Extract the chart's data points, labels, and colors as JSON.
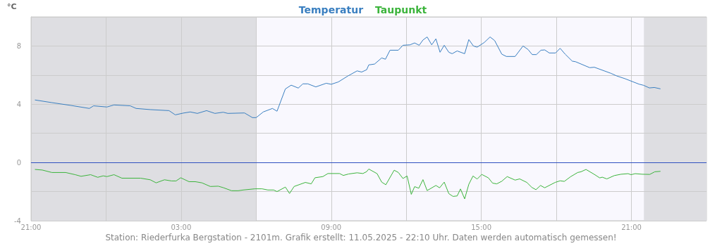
{
  "chart_data": {
    "type": "line",
    "ylabel": "°C",
    "annotations": [
      "Station: Riederfurka Bergstation - 2101m. Grafik erstellt: 11.05.2025 - 22:10 Uhr. Daten werden automatisch gemessen!"
    ],
    "series": [
      {
        "name": "Temperatur",
        "color": "#3a7fc0",
        "x": [
          "2025-05-10T21:10",
          "2025-05-10T21:50",
          "2025-05-10T22:35",
          "2025-05-10T23:20",
          "2025-05-10T23:30",
          "2025-05-11T00:02",
          "2025-05-11T00:19",
          "2025-05-11T00:58",
          "2025-05-11T01:12",
          "2025-05-11T01:46",
          "2025-05-11T02:31",
          "2025-05-11T02:46",
          "2025-05-11T03:05",
          "2025-05-11T03:22",
          "2025-05-11T03:39",
          "2025-05-11T04:01",
          "2025-05-11T04:21",
          "2025-05-11T04:41",
          "2025-05-11T04:52",
          "2025-05-11T05:32",
          "2025-05-11T05:51",
          "2025-05-11T06:00",
          "2025-05-11T06:17",
          "2025-05-11T06:39",
          "2025-05-11T06:50",
          "2025-05-11T07:10",
          "2025-05-11T07:24",
          "2025-05-11T07:41",
          "2025-05-11T07:52",
          "2025-05-11T08:04",
          "2025-05-11T08:23",
          "2025-05-11T08:48",
          "2025-05-11T09:00",
          "2025-05-11T09:17",
          "2025-05-11T09:40",
          "2025-05-11T10:02",
          "2025-05-11T10:13",
          "2025-05-11T10:25",
          "2025-05-11T10:30",
          "2025-05-11T10:44",
          "2025-05-11T11:01",
          "2025-05-11T11:10",
          "2025-05-11T11:21",
          "2025-05-11T11:41",
          "2025-05-11T11:52",
          "2025-05-11T12:09",
          "2025-05-11T12:20",
          "2025-05-11T12:31",
          "2025-05-11T12:40",
          "2025-05-11T12:50",
          "2025-05-11T13:01",
          "2025-05-11T13:11",
          "2025-05-11T13:21",
          "2025-05-11T13:31",
          "2025-05-11T13:42",
          "2025-05-11T13:50",
          "2025-05-11T14:02",
          "2025-05-11T14:20",
          "2025-05-11T14:30",
          "2025-05-11T14:41",
          "2025-05-11T14:50",
          "2025-05-11T15:07",
          "2025-05-11T15:21",
          "2025-05-11T15:32",
          "2025-05-11T15:49",
          "2025-05-11T16:00",
          "2025-05-11T16:21",
          "2025-05-11T16:40",
          "2025-05-11T16:52",
          "2025-05-11T17:02",
          "2025-05-11T17:12",
          "2025-05-11T17:23",
          "2025-05-11T17:32",
          "2025-05-11T17:43",
          "2025-05-11T17:58",
          "2025-05-11T18:09",
          "2025-05-11T18:21",
          "2025-05-11T18:38",
          "2025-05-11T18:46",
          "2025-05-11T19:20",
          "2025-05-11T19:31",
          "2025-05-11T20:11",
          "2025-05-11T20:25",
          "2025-05-11T20:44",
          "2025-05-11T21:18",
          "2025-05-11T21:29",
          "2025-05-11T21:43",
          "2025-05-11T21:55",
          "2025-05-11T22:09"
        ],
        "values": [
          4.29,
          4.11,
          3.92,
          3.71,
          3.89,
          3.81,
          3.95,
          3.89,
          3.71,
          3.63,
          3.56,
          3.27,
          3.39,
          3.47,
          3.37,
          3.56,
          3.37,
          3.45,
          3.37,
          3.4,
          3.08,
          3.08,
          3.47,
          3.71,
          3.52,
          5.05,
          5.31,
          5.11,
          5.4,
          5.4,
          5.19,
          5.44,
          5.37,
          5.53,
          5.94,
          6.29,
          6.21,
          6.37,
          6.7,
          6.76,
          7.18,
          7.09,
          7.71,
          7.71,
          8.05,
          8.08,
          8.21,
          8.05,
          8.41,
          8.62,
          8.08,
          8.49,
          7.57,
          8.05,
          7.57,
          7.47,
          7.66,
          7.47,
          8.44,
          8.0,
          7.92,
          8.24,
          8.62,
          8.37,
          7.44,
          7.28,
          7.28,
          8.0,
          7.76,
          7.41,
          7.41,
          7.71,
          7.73,
          7.52,
          7.52,
          7.84,
          7.44,
          6.96,
          6.92,
          6.51,
          6.54,
          6.12,
          5.94,
          5.76,
          5.38,
          5.3,
          5.12,
          5.15,
          5.06
        ]
      },
      {
        "name": "Taupunkt",
        "color": "#3cb43c",
        "x": [
          "2025-05-10T21:10",
          "2025-05-10T21:27",
          "2025-05-10T21:50",
          "2025-05-10T22:23",
          "2025-05-10T22:46",
          "2025-05-10T23:00",
          "2025-05-10T23:23",
          "2025-05-10T23:40",
          "2025-05-10T23:53",
          "2025-05-11T00:02",
          "2025-05-11T00:19",
          "2025-05-11T00:38",
          "2025-05-11T01:23",
          "2025-05-11T01:46",
          "2025-05-11T02:00",
          "2025-05-11T02:20",
          "2025-05-11T02:37",
          "2025-05-11T02:48",
          "2025-05-11T02:59",
          "2025-05-11T03:19",
          "2025-05-11T03:34",
          "2025-05-11T03:50",
          "2025-05-11T04:10",
          "2025-05-11T04:29",
          "2025-05-11T04:41",
          "2025-05-11T05:01",
          "2025-05-11T05:17",
          "2025-05-11T05:29",
          "2025-05-11T05:57",
          "2025-05-11T06:14",
          "2025-05-11T06:28",
          "2025-05-11T06:42",
          "2025-05-11T06:50",
          "2025-05-11T07:10",
          "2025-05-11T07:20",
          "2025-05-11T07:31",
          "2025-05-11T07:58",
          "2025-05-11T08:12",
          "2025-05-11T08:21",
          "2025-05-11T08:40",
          "2025-05-11T08:52",
          "2025-05-11T09:20",
          "2025-05-11T09:29",
          "2025-05-11T09:42",
          "2025-05-11T10:02",
          "2025-05-11T10:16",
          "2025-05-11T10:25",
          "2025-05-11T10:30",
          "2025-05-11T10:50",
          "2025-05-11T11:01",
          "2025-05-11T11:11",
          "2025-05-11T11:31",
          "2025-05-11T11:41",
          "2025-05-11T11:52",
          "2025-05-11T12:02",
          "2025-05-11T12:12",
          "2025-05-11T12:20",
          "2025-05-11T12:30",
          "2025-05-11T12:40",
          "2025-05-11T12:50",
          "2025-05-11T13:11",
          "2025-05-11T13:20",
          "2025-05-11T13:31",
          "2025-05-11T13:42",
          "2025-05-11T13:52",
          "2025-05-11T14:02",
          "2025-05-11T14:10",
          "2025-05-11T14:20",
          "2025-05-11T14:30",
          "2025-05-11T14:40",
          "2025-05-11T14:50",
          "2025-05-11T15:01",
          "2025-05-11T15:17",
          "2025-05-11T15:27",
          "2025-05-11T15:37",
          "2025-05-11T15:49",
          "2025-05-11T16:02",
          "2025-05-11T16:21",
          "2025-05-11T16:32",
          "2025-05-11T16:49",
          "2025-05-11T17:01",
          "2025-05-11T17:11",
          "2025-05-11T17:22",
          "2025-05-11T17:32",
          "2025-05-11T17:57",
          "2025-05-11T18:09",
          "2025-05-11T18:19",
          "2025-05-11T18:34",
          "2025-05-11T18:51",
          "2025-05-11T18:59",
          "2025-05-11T19:11",
          "2025-05-11T19:31",
          "2025-05-11T19:44",
          "2025-05-11T19:50",
          "2025-05-11T20:01",
          "2025-05-11T20:19",
          "2025-05-11T20:35",
          "2025-05-11T20:52",
          "2025-05-11T20:59",
          "2025-05-11T21:09",
          "2025-05-11T21:26",
          "2025-05-11T21:44",
          "2025-05-11T21:56",
          "2025-05-11T22:09"
        ],
        "values": [
          -0.48,
          -0.52,
          -0.69,
          -0.69,
          -0.84,
          -0.95,
          -0.84,
          -1.02,
          -0.92,
          -0.97,
          -0.84,
          -1.08,
          -1.08,
          -1.19,
          -1.4,
          -1.19,
          -1.27,
          -1.27,
          -1.05,
          -1.32,
          -1.32,
          -1.4,
          -1.65,
          -1.63,
          -1.73,
          -1.94,
          -1.94,
          -1.89,
          -1.81,
          -1.81,
          -1.89,
          -1.89,
          -2.0,
          -1.69,
          -2.13,
          -1.65,
          -1.37,
          -1.47,
          -1.05,
          -0.97,
          -0.76,
          -0.76,
          -0.89,
          -0.79,
          -0.71,
          -0.76,
          -0.63,
          -0.45,
          -0.77,
          -1.35,
          -1.53,
          -0.53,
          -0.69,
          -1.1,
          -0.93,
          -2.19,
          -1.66,
          -1.77,
          -1.18,
          -1.93,
          -1.58,
          -1.74,
          -1.35,
          -2.14,
          -2.33,
          -2.3,
          -1.82,
          -2.5,
          -1.5,
          -0.93,
          -1.14,
          -0.82,
          -1.06,
          -1.42,
          -1.47,
          -1.29,
          -0.97,
          -1.21,
          -1.13,
          -1.37,
          -1.71,
          -1.87,
          -1.58,
          -1.74,
          -1.37,
          -1.26,
          -1.3,
          -0.98,
          -0.69,
          -0.64,
          -0.48,
          -0.82,
          -1.06,
          -1.01,
          -1.13,
          -0.9,
          -0.81,
          -0.77,
          -0.84,
          -0.77,
          -0.81,
          -0.82,
          -0.64,
          -0.61
        ]
      }
    ],
    "xlim": [
      "2025-05-10T21:00",
      "2025-05-12T00:00"
    ],
    "xticks": [
      {
        "value": "2025-05-10T21:00",
        "label": "21:00"
      },
      {
        "value": "2025-05-11T00:00",
        "label": null
      },
      {
        "value": "2025-05-11T03:00",
        "label": "03:00"
      },
      {
        "value": "2025-05-11T06:00",
        "label": null
      },
      {
        "value": "2025-05-11T09:00",
        "label": "09:00"
      },
      {
        "value": "2025-05-11T12:00",
        "label": null
      },
      {
        "value": "2025-05-11T15:00",
        "label": "15:00"
      },
      {
        "value": "2025-05-11T18:00",
        "label": null
      },
      {
        "value": "2025-05-11T21:00",
        "label": "21:00"
      }
    ],
    "ylim": [
      -4,
      10
    ],
    "yticks": [
      -4,
      {
        "value": -2,
        "label": null
      },
      0,
      {
        "value": 2,
        "label": null
      },
      4,
      {
        "value": 6,
        "label": null
      },
      8,
      {
        "value": 10,
        "label": null
      }
    ],
    "bands": [
      {
        "axis": "x",
        "from": "2025-05-10T21:00",
        "to": "2025-05-11T06:00",
        "color": "#dedee2"
      },
      {
        "axis": "x",
        "from": "2025-05-11T21:30",
        "to": "2025-05-12T00:00",
        "color": "#dedee2"
      }
    ],
    "ref_lines": [
      {
        "axis": "y",
        "value": 0,
        "color": "#3050c0"
      }
    ],
    "grid": true,
    "legend": "top",
    "marker": "none",
    "line_style": "solid"
  }
}
